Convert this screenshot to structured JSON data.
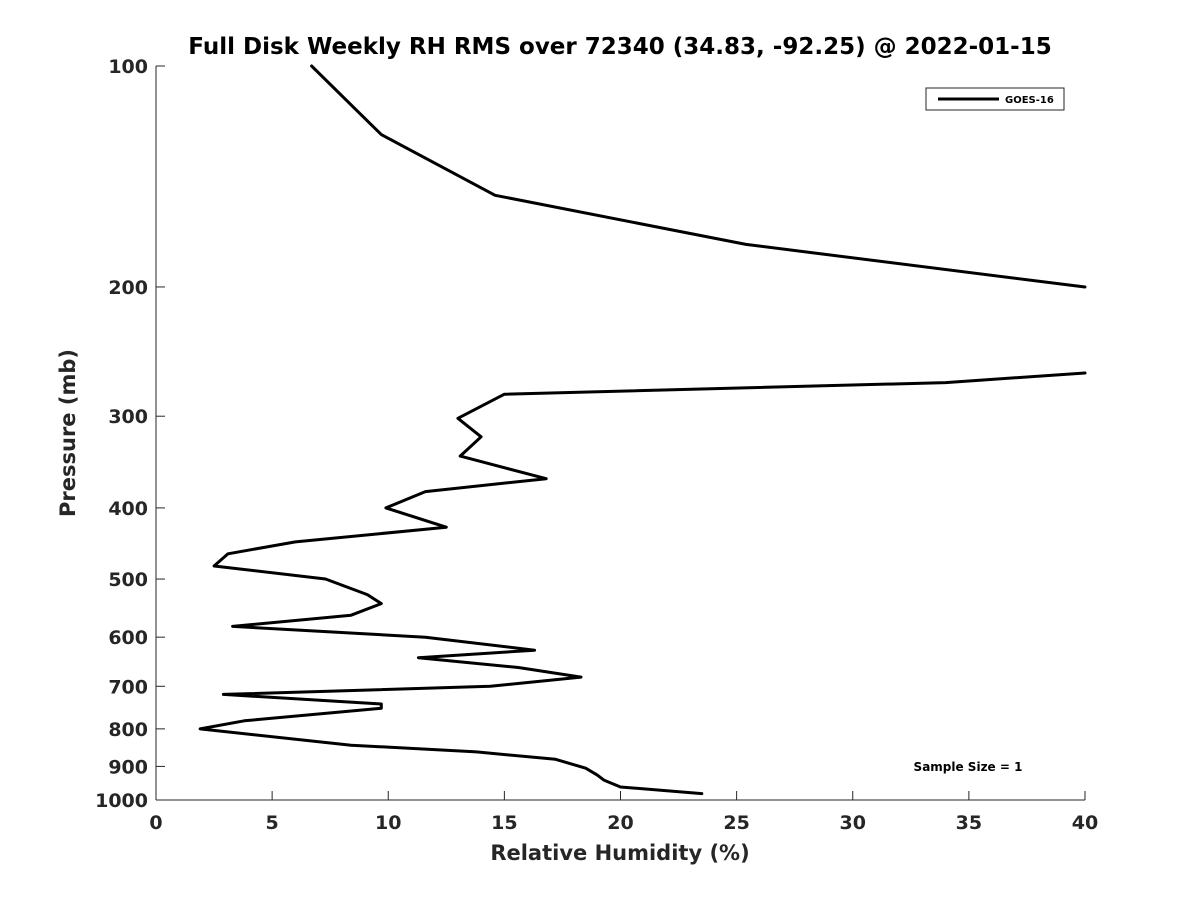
{
  "chart_data": {
    "type": "line",
    "title": "Full Disk Weekly RH RMS over 72340 (34.83, -92.25) @ 2022-01-15",
    "xlabel": "Relative Humidity (%)",
    "ylabel": "Pressure (mb)",
    "xlim": [
      0,
      40
    ],
    "ylim": [
      100,
      1000
    ],
    "y_scale": "log",
    "y_reversed": true,
    "x_ticks": [
      0,
      5,
      10,
      15,
      20,
      25,
      30,
      35,
      40
    ],
    "x_tick_labels": [
      "0",
      "5",
      "10",
      "15",
      "20",
      "25",
      "30",
      "35",
      "40"
    ],
    "y_ticks": [
      100,
      200,
      300,
      400,
      500,
      600,
      700,
      800,
      900,
      1000
    ],
    "y_tick_labels": [
      "100",
      "200",
      "300",
      "400",
      "500",
      "600",
      "700",
      "800",
      "900",
      "1000"
    ],
    "grid": false,
    "legend_position": "top-right",
    "annotation": "Sample Size = 1",
    "series": [
      {
        "name": "GOES-16",
        "color": "#000000",
        "segments": [
          [
            {
              "x": 6.7,
              "p": 100
            },
            {
              "x": 9.7,
              "p": 124
            },
            {
              "x": 14.6,
              "p": 150
            },
            {
              "x": 25.4,
              "p": 175
            },
            {
              "x": 40.0,
              "p": 200
            }
          ],
          [
            {
              "x": 40.0,
              "p": 262
            },
            {
              "x": 34.0,
              "p": 270
            },
            {
              "x": 15.0,
              "p": 280
            },
            {
              "x": 13.0,
              "p": 302
            },
            {
              "x": 14.0,
              "p": 320
            },
            {
              "x": 13.1,
              "p": 340
            },
            {
              "x": 16.8,
              "p": 365
            },
            {
              "x": 11.6,
              "p": 380
            },
            {
              "x": 9.9,
              "p": 400
            },
            {
              "x": 12.5,
              "p": 425
            },
            {
              "x": 6.0,
              "p": 445
            },
            {
              "x": 3.1,
              "p": 462
            },
            {
              "x": 2.5,
              "p": 480
            },
            {
              "x": 7.3,
              "p": 500
            },
            {
              "x": 9.1,
              "p": 525
            },
            {
              "x": 9.7,
              "p": 540
            },
            {
              "x": 8.4,
              "p": 560
            },
            {
              "x": 3.3,
              "p": 580
            },
            {
              "x": 11.6,
              "p": 600
            },
            {
              "x": 16.3,
              "p": 625
            },
            {
              "x": 11.3,
              "p": 640
            },
            {
              "x": 15.6,
              "p": 660
            },
            {
              "x": 18.3,
              "p": 680
            },
            {
              "x": 14.4,
              "p": 700
            },
            {
              "x": 2.9,
              "p": 718
            },
            {
              "x": 9.7,
              "p": 740
            },
            {
              "x": 9.7,
              "p": 750
            },
            {
              "x": 3.8,
              "p": 780
            },
            {
              "x": 1.9,
              "p": 800
            },
            {
              "x": 8.4,
              "p": 842
            },
            {
              "x": 13.8,
              "p": 860
            },
            {
              "x": 17.2,
              "p": 880
            },
            {
              "x": 18.5,
              "p": 905
            },
            {
              "x": 19.0,
              "p": 925
            },
            {
              "x": 19.3,
              "p": 940
            },
            {
              "x": 20.0,
              "p": 960
            },
            {
              "x": 23.5,
              "p": 980
            }
          ]
        ]
      }
    ]
  }
}
